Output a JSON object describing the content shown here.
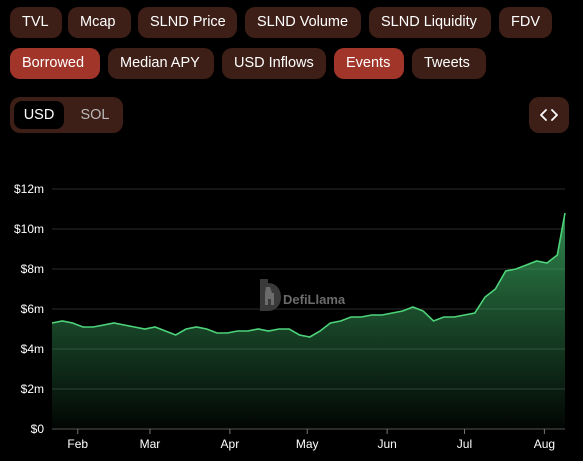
{
  "tabs_row1": [
    {
      "label": "TVL",
      "active": false
    },
    {
      "label": "Mcap",
      "active": false
    },
    {
      "label": "SLND Price",
      "active": false
    },
    {
      "label": "SLND Volume",
      "active": false
    },
    {
      "label": "SLND Liquidity",
      "active": false
    },
    {
      "label": "FDV",
      "active": false
    }
  ],
  "tabs_row2": [
    {
      "label": "Borrowed",
      "active": true
    },
    {
      "label": "Median APY",
      "active": false
    },
    {
      "label": "USD Inflows",
      "active": false
    },
    {
      "label": "Events",
      "active": true
    },
    {
      "label": "Tweets",
      "active": false
    }
  ],
  "currency_toggle": {
    "options": [
      "USD",
      "SOL"
    ],
    "selected": "USD"
  },
  "embed_icon": "code-brackets-icon",
  "watermark": {
    "text": "DefiLlama",
    "icon": "llama-logo-icon"
  },
  "colors": {
    "accent": "#a1352a",
    "pill_bg": "#3d1f17",
    "line": "#4dd47a"
  },
  "chart_data": {
    "type": "area",
    "title": "",
    "xlabel": "",
    "ylabel": "",
    "y_unit": "USD",
    "ylim": [
      0,
      12
    ],
    "y_ticks": [
      "$0",
      "$2m",
      "$4m",
      "$6m",
      "$8m",
      "$10m",
      "$12m"
    ],
    "x_ticks": [
      "Feb",
      "Mar",
      "Apr",
      "May",
      "Jun",
      "Jul",
      "Aug"
    ],
    "grid": "horizontal",
    "series": [
      {
        "x": [
          "2023-01-22",
          "2023-01-26",
          "2023-01-30",
          "2023-02-03",
          "2023-02-07",
          "2023-02-11",
          "2023-02-15",
          "2023-02-19",
          "2023-02-23",
          "2023-02-27",
          "2023-03-03",
          "2023-03-07",
          "2023-03-11",
          "2023-03-15",
          "2023-03-19",
          "2023-03-23",
          "2023-03-27",
          "2023-03-31",
          "2023-04-04",
          "2023-04-08",
          "2023-04-12",
          "2023-04-16",
          "2023-04-20",
          "2023-04-24",
          "2023-04-28",
          "2023-05-02",
          "2023-05-06",
          "2023-05-10",
          "2023-05-14",
          "2023-05-18",
          "2023-05-22",
          "2023-05-26",
          "2023-05-30",
          "2023-06-03",
          "2023-06-07",
          "2023-06-11",
          "2023-06-15",
          "2023-06-19",
          "2023-06-23",
          "2023-06-27",
          "2023-07-01",
          "2023-07-05",
          "2023-07-09",
          "2023-07-13",
          "2023-07-17",
          "2023-07-21",
          "2023-07-25",
          "2023-07-29",
          "2023-08-02",
          "2023-08-06",
          "2023-08-09"
        ],
        "values": [
          5.3,
          5.4,
          5.3,
          5.1,
          5.1,
          5.2,
          5.3,
          5.2,
          5.1,
          5.0,
          5.1,
          4.9,
          4.7,
          5.0,
          5.1,
          5.0,
          4.8,
          4.8,
          4.9,
          4.9,
          5.0,
          4.9,
          5.0,
          5.0,
          4.7,
          4.6,
          4.9,
          5.3,
          5.4,
          5.6,
          5.6,
          5.7,
          5.7,
          5.8,
          5.9,
          6.1,
          5.9,
          5.4,
          5.6,
          5.6,
          5.7,
          5.8,
          6.6,
          7.0,
          7.9,
          8.0,
          8.2,
          8.4,
          8.3,
          8.7,
          10.8
        ]
      }
    ]
  }
}
